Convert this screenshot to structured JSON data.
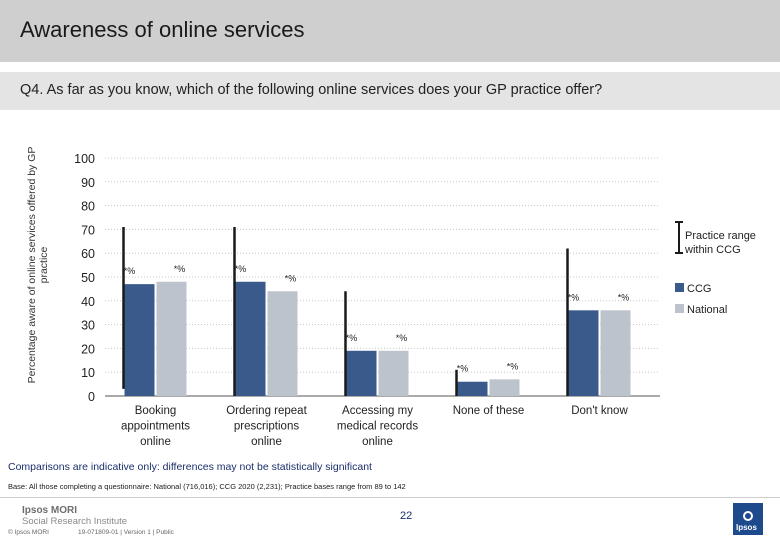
{
  "header": {
    "title": "Awareness of online services",
    "question": "Q4. As far as you know, which of the following online services does your GP practice offer?"
  },
  "chart_data": {
    "type": "bar",
    "ylabel": "Percentage aware of online services offered by GP practice",
    "ylim": [
      0,
      100
    ],
    "yticks": [
      0,
      10,
      20,
      30,
      40,
      50,
      60,
      70,
      80,
      90,
      100
    ],
    "categories": [
      "Booking appointments online",
      "Ordering repeat prescriptions online",
      "Accessing my medical records online",
      "None of these",
      "Don't know"
    ],
    "category_lines": [
      [
        "Booking",
        "appointments",
        "online"
      ],
      [
        "Ordering repeat",
        "prescriptions",
        "online"
      ],
      [
        "Accessing my",
        "medical records",
        "online"
      ],
      [
        "None of these"
      ],
      [
        "Don't know"
      ]
    ],
    "series": [
      {
        "name": "CCG",
        "values": [
          47,
          48,
          19,
          6,
          36
        ],
        "color": "#3a5a8c",
        "labels": [
          "*%",
          "*%",
          "*%",
          "*%",
          "*%"
        ]
      },
      {
        "name": "National",
        "values": [
          48,
          44,
          19,
          7,
          36
        ],
        "color": "#bcc3cc",
        "labels": [
          "*%",
          "*%",
          "*%",
          "*%",
          "*%"
        ]
      }
    ],
    "ranges": [
      {
        "low": 3,
        "high": 71
      },
      {
        "low": 0,
        "high": 71
      },
      {
        "low": 0,
        "high": 44
      },
      {
        "low": 0,
        "high": 11
      },
      {
        "low": 0,
        "high": 62
      }
    ],
    "range_legend": "Practice range within CCG",
    "grid": true,
    "legend_position": "right"
  },
  "footer": {
    "note": "Comparisons are indicative only: differences may not be statistically significant",
    "base": "Base: All those completing a questionnaire: National (716,016); CCG 2020 (2,231); Practice bases range from 89 to 142",
    "brand_name": "Ipsos MORI",
    "brand_sub": "Social Research Institute",
    "copyright": "© Ipsos MORI",
    "job_ref": "19-071809-01 | Version 1 | Public",
    "page_number": "22",
    "logo_text": "Ipsos"
  }
}
